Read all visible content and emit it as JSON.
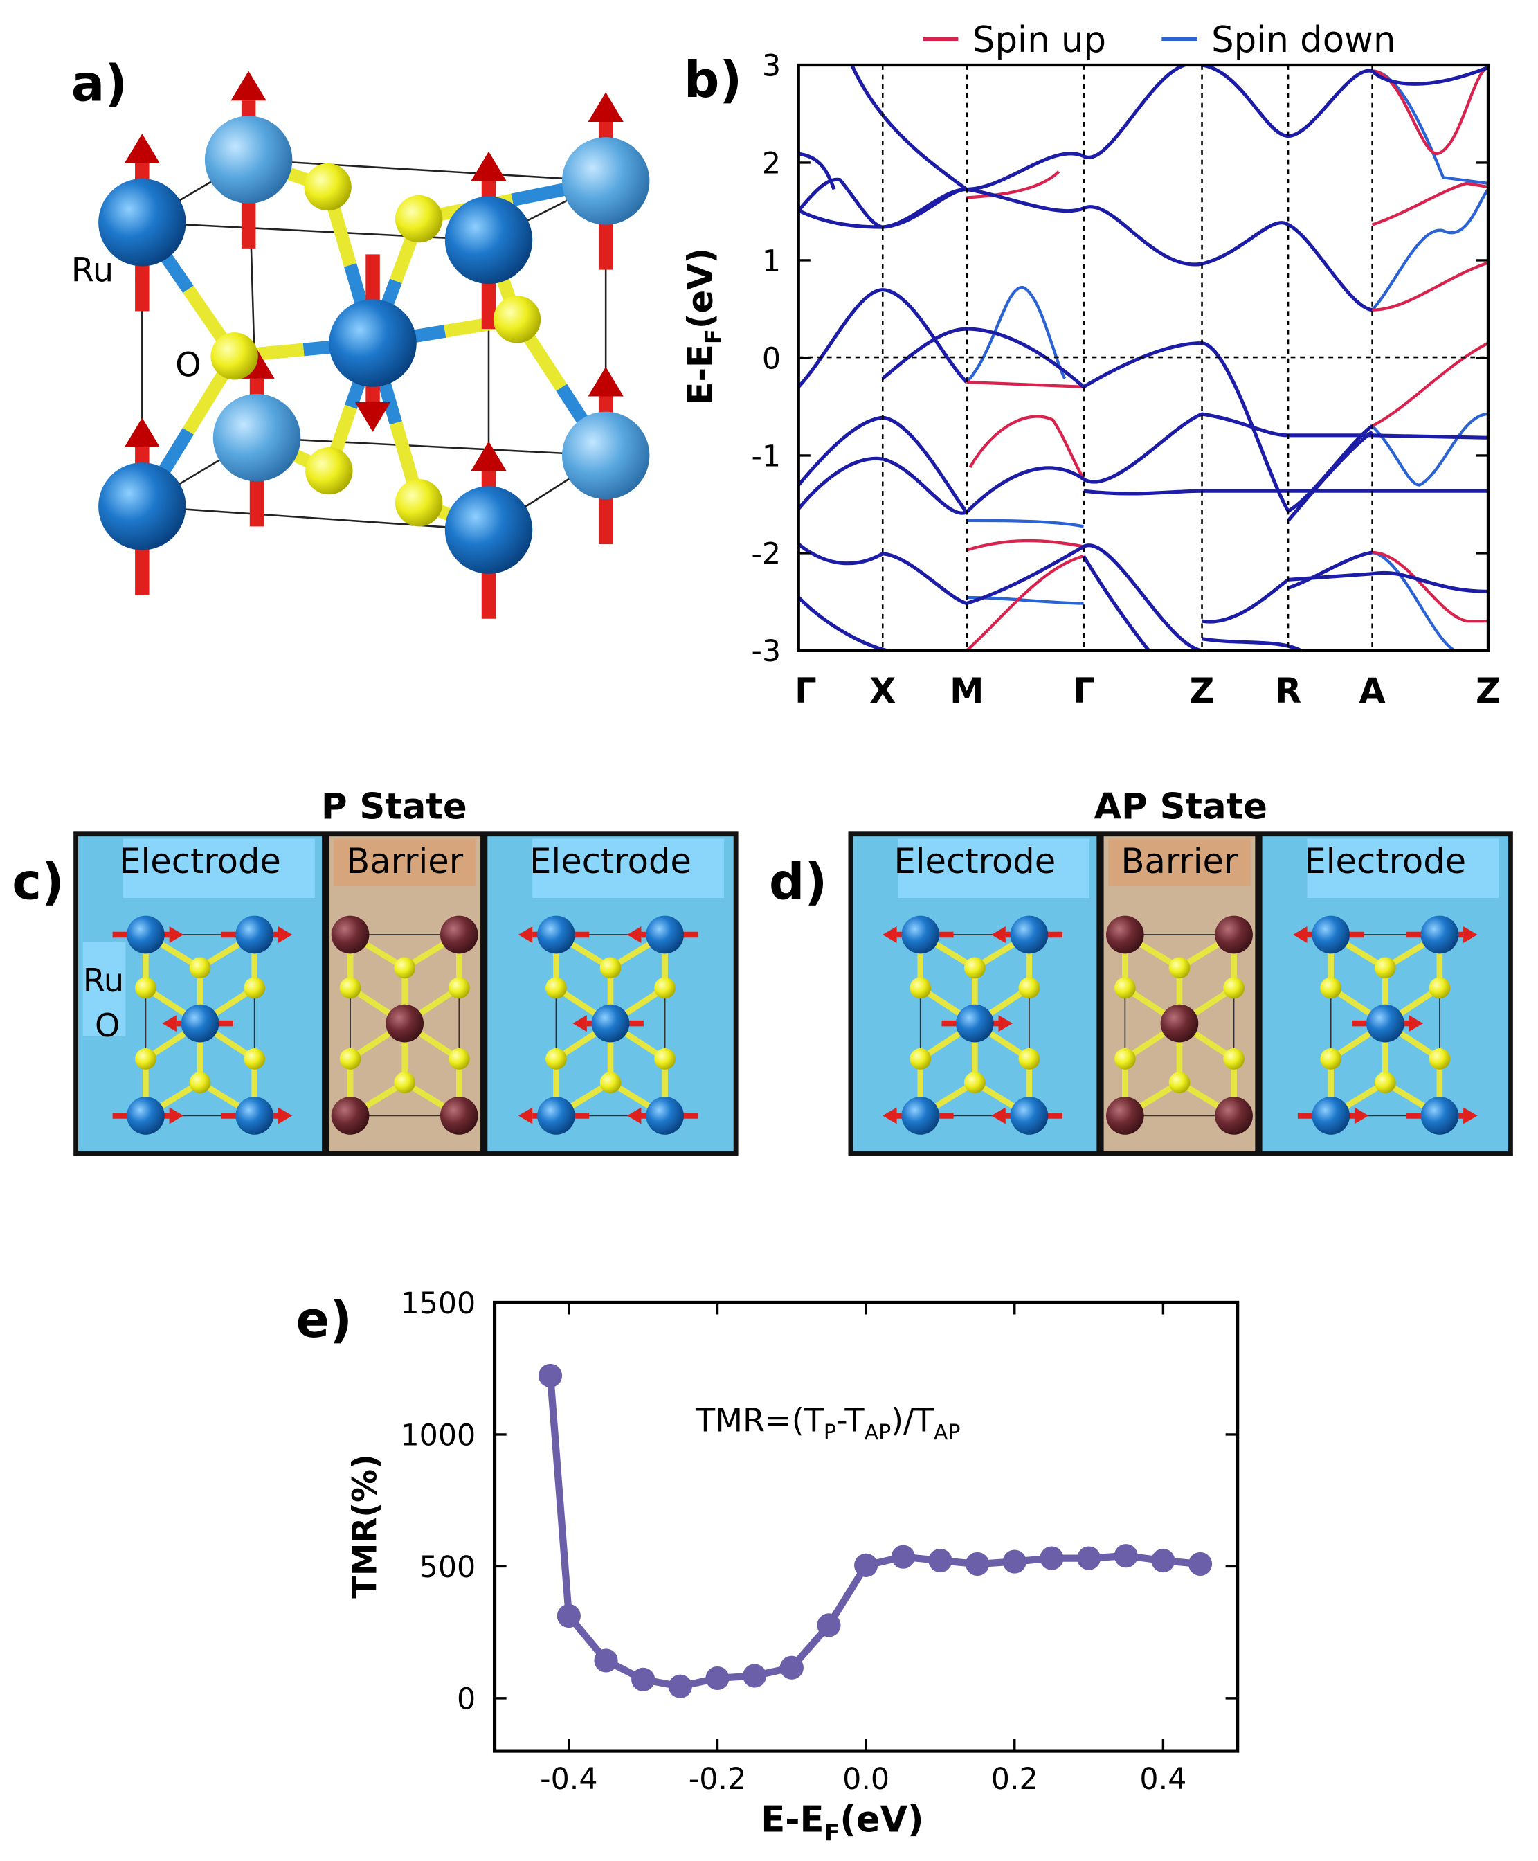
{
  "panel_a": {
    "label": "a)",
    "atom_labels": [
      "Ru",
      "O"
    ]
  },
  "panel_c": {
    "label": "c)",
    "title": "P State",
    "regions": [
      "Electrode",
      "Barrier",
      "Electrode"
    ],
    "atom_labels": [
      "Ru",
      "O"
    ]
  },
  "panel_d": {
    "label": "d)",
    "title": "AP State",
    "regions": [
      "Electrode",
      "Barrier",
      "Electrode"
    ]
  },
  "chart_data": [
    {
      "type": "line",
      "label": "b)",
      "ylabel": [
        "E-E",
        "F",
        "(eV)"
      ],
      "xlim": [
        0,
        1
      ],
      "xticks": [
        {
          "value": 0,
          "label": "Γ"
        },
        {
          "value": 0.122,
          "label": "X"
        },
        {
          "value": 0.244,
          "label": "M"
        },
        {
          "value": 0.414,
          "label": "Γ"
        },
        {
          "value": 0.585,
          "label": "Z"
        },
        {
          "value": 0.71,
          "label": "R"
        },
        {
          "value": 0.832,
          "label": "A"
        },
        {
          "value": 1,
          "label": "Z"
        }
      ],
      "ylim": [
        -3,
        3
      ],
      "yticks": [
        -3,
        -2,
        -1,
        0,
        1,
        2,
        3
      ],
      "series": [
        {
          "name": "Spin up",
          "color": "#d9234f"
        },
        {
          "name": "Spin down",
          "color": "#2b63d4"
        }
      ]
    },
    {
      "type": "line",
      "label": "e)",
      "xlabel": [
        "E-E",
        "F",
        "(eV)"
      ],
      "ylabel": "TMR(%)",
      "annotation": [
        "TMR=(T",
        "P",
        "-T",
        "AP",
        ")/T",
        "AP"
      ],
      "x": [
        -0.425,
        -0.4,
        -0.35,
        -0.3,
        -0.25,
        -0.2,
        -0.15,
        -0.1,
        -0.05,
        0,
        0.05,
        0.1,
        0.15,
        0.2,
        0.25,
        0.3,
        0.35,
        0.4,
        0.45
      ],
      "values": [
        1223,
        312,
        143,
        71,
        45,
        76,
        85,
        116,
        277,
        504,
        536,
        522,
        509,
        518,
        531,
        531,
        540,
        522,
        509
      ],
      "color": "#6a5fa8",
      "xlim": [
        -0.5,
        0.5
      ],
      "xticks": [
        -0.4,
        -0.2,
        {
          "value": 0,
          "label": "0.0"
        },
        0.2,
        0.4
      ],
      "ylim": [
        -200,
        1500
      ],
      "yticks": [
        0,
        500,
        1000,
        1500
      ]
    }
  ]
}
